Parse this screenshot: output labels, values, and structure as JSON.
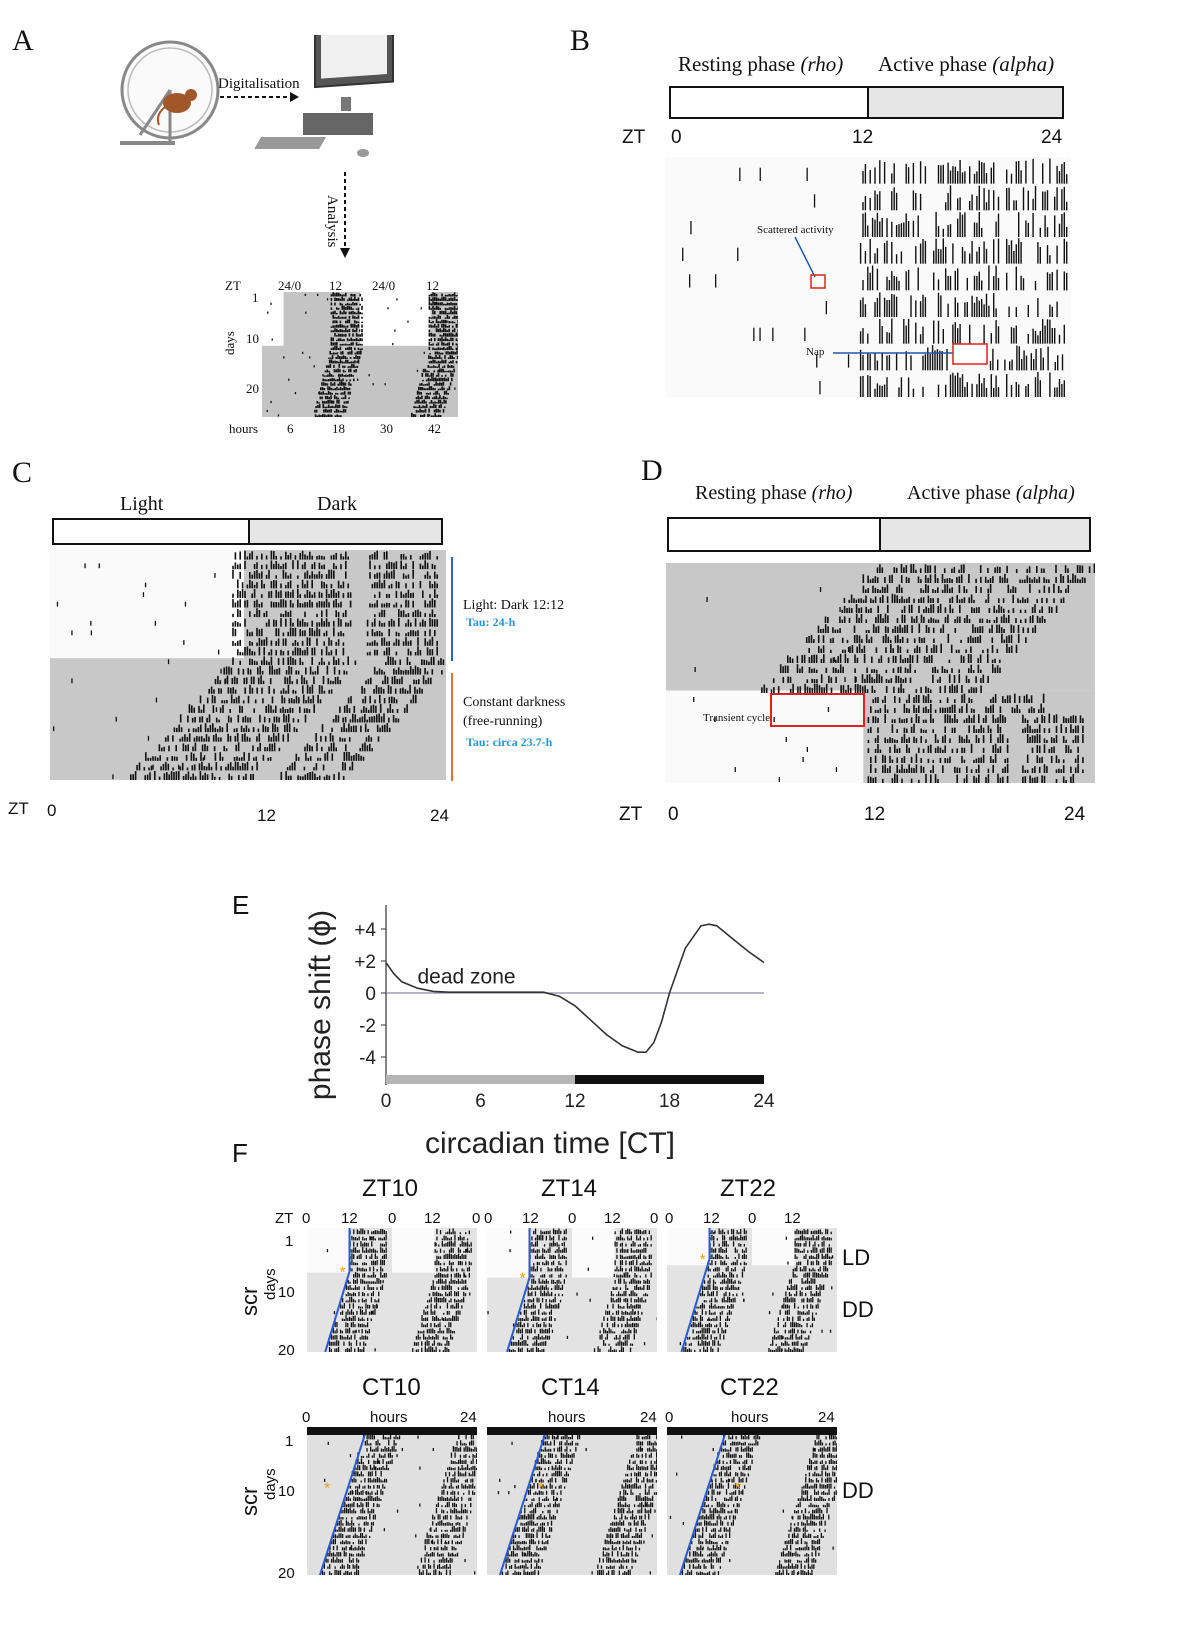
{
  "panels": {
    "A": {
      "label": "A",
      "arrow1": "Digitalisation",
      "arrow2": "Analysis",
      "zt_label": "ZT",
      "zt_ticks": [
        "24/0",
        "12",
        "24/0",
        "12"
      ],
      "y_label": "days",
      "y_ticks": [
        "1",
        "10",
        "20"
      ],
      "x_label": "hours",
      "x_ticks": [
        "6",
        "18",
        "30",
        "42"
      ]
    },
    "B": {
      "label": "B",
      "rest_text": "Resting phase ",
      "rest_italic": "(rho)",
      "active_text": "Active phase ",
      "active_italic": "(alpha)",
      "zt_label": "ZT",
      "zt_ticks": [
        "0",
        "12",
        "24"
      ],
      "annot1": "Scattered activity",
      "annot2": "Nap"
    },
    "C": {
      "label": "C",
      "light": "Light",
      "dark": "Dark",
      "ld_text": "Light: Dark 12:12",
      "ld_tau": "Tau: 24-h",
      "dd_text1": "Constant darkness",
      "dd_text2": "(free-running)",
      "dd_tau": "Tau: circa 23.7-h",
      "zt_label": "ZT",
      "zt_ticks": [
        "0",
        "12",
        "24"
      ]
    },
    "D": {
      "label": "D",
      "rest_text": "Resting phase ",
      "rest_italic": "(rho)",
      "active_text": "Active phase ",
      "active_italic": "(alpha)",
      "annot": "Transient cycle",
      "zt_label": "ZT",
      "zt_ticks": [
        "0",
        "12",
        "24"
      ]
    },
    "E": {
      "label": "E",
      "ylabel": "phase shift (ϕ)",
      "xlabel": "circadian time [CT]",
      "annotation": "dead zone",
      "yticks": [
        "+4",
        "+2",
        "0",
        "-2",
        "-4"
      ],
      "xticks": [
        "0",
        "6",
        "12",
        "18",
        "24"
      ]
    },
    "F": {
      "label": "F",
      "top_titles": [
        "ZT10",
        "ZT14",
        "ZT22"
      ],
      "bottom_titles": [
        "CT10",
        "CT14",
        "CT22"
      ],
      "zt_label": "ZT",
      "zt_ticks": [
        "0",
        "12",
        "0",
        "12",
        "0"
      ],
      "hours_ticks": [
        "0",
        "hours",
        "24"
      ],
      "y_label_scr": "scr",
      "y_label_days": "days",
      "y_ticks": [
        "1",
        "10",
        "20"
      ],
      "ld": "LD",
      "dd": "DD"
    }
  },
  "chart_data": {
    "type": "line",
    "title": "",
    "xlabel": "circadian time [CT]",
    "ylabel": "phase shift (ϕ)",
    "xlim": [
      0,
      24
    ],
    "ylim": [
      -5,
      5.5
    ],
    "xticks": [
      0,
      6,
      12,
      18,
      24
    ],
    "yticks": [
      4,
      2,
      0,
      -2,
      -4
    ],
    "annotations": [
      "dead zone"
    ],
    "series": [
      {
        "x": [
          0,
          0.5,
          1,
          2,
          3,
          4,
          6,
          8,
          10,
          11,
          12,
          13,
          14,
          15,
          16,
          16.5,
          17,
          17.5,
          18,
          19,
          20,
          20.5,
          21,
          22,
          23,
          24
        ],
        "values": [
          1.9,
          1.2,
          0.7,
          0.3,
          0.1,
          0.05,
          0.05,
          0.05,
          0.05,
          -0.2,
          -0.8,
          -1.7,
          -2.6,
          -3.3,
          -3.7,
          -3.7,
          -3.1,
          -1.8,
          0.0,
          2.8,
          4.2,
          4.3,
          4.2,
          3.4,
          2.6,
          1.9
        ]
      }
    ],
    "bar": {
      "light_until": 12,
      "dark_from": 12
    }
  }
}
